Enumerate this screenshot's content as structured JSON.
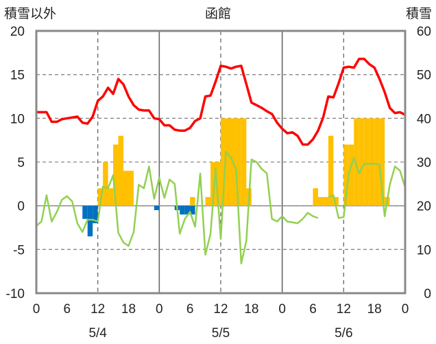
{
  "header": {
    "left_axis_title": "積雪以外",
    "center_title": "函館",
    "right_axis_title": "積雪"
  },
  "chart_data": {
    "type": "bar+line",
    "title": "函館",
    "y_left": {
      "label": "積雪以外",
      "ylim": [
        -10,
        20
      ],
      "ticks": [
        -10,
        -5,
        0,
        5,
        10,
        15,
        20
      ]
    },
    "y_right": {
      "label": "積雪",
      "ylim": [
        0,
        60
      ],
      "ticks": [
        0,
        10,
        20,
        30,
        40,
        50,
        60
      ]
    },
    "x": {
      "range_hours": [
        0,
        72
      ],
      "tick_hours": [
        0,
        6,
        12,
        18,
        24,
        30,
        36,
        42,
        48,
        54,
        60,
        66,
        72
      ],
      "tick_labels": [
        "0",
        "6",
        "12",
        "18",
        "0",
        "6",
        "12",
        "18",
        "0",
        "6",
        "12",
        "18",
        "0"
      ],
      "day_labels": [
        {
          "hour": 12,
          "text": "5/4"
        },
        {
          "hour": 36,
          "text": "5/5"
        },
        {
          "hour": 60,
          "text": "5/6"
        }
      ],
      "day_dividers": [
        24,
        48
      ],
      "dashed_gridlines": [
        12,
        36,
        60
      ]
    },
    "grid": {
      "horizontal_dashed": [
        -5,
        0,
        5,
        10,
        15
      ]
    },
    "series": [
      {
        "type": "bar",
        "color": "#FFC000",
        "axis": "left",
        "points": [
          [
            12,
            2
          ],
          [
            13,
            5
          ],
          [
            14,
            2
          ],
          [
            15,
            7
          ],
          [
            16,
            8
          ],
          [
            17,
            4
          ],
          [
            18,
            4
          ],
          [
            30,
            1
          ],
          [
            33,
            1
          ],
          [
            34,
            5
          ],
          [
            35,
            5
          ],
          [
            36,
            10
          ],
          [
            37,
            10
          ],
          [
            38,
            10
          ],
          [
            39,
            10
          ],
          [
            40,
            10
          ],
          [
            41,
            2
          ],
          [
            54,
            2
          ],
          [
            55,
            1
          ],
          [
            56,
            1
          ],
          [
            57,
            8
          ],
          [
            58,
            1
          ],
          [
            60,
            7
          ],
          [
            61,
            7
          ],
          [
            62,
            10
          ],
          [
            63,
            10
          ],
          [
            64,
            10
          ],
          [
            65,
            10
          ],
          [
            66,
            10
          ],
          [
            67,
            10
          ],
          [
            68,
            1
          ]
        ]
      },
      {
        "type": "bar",
        "color": "#0070C0",
        "axis": "left",
        "points": [
          [
            9,
            -1.5
          ],
          [
            10,
            -3.5
          ],
          [
            11,
            -2
          ],
          [
            23,
            -0.5
          ],
          [
            27,
            -0.5
          ],
          [
            28,
            -1
          ],
          [
            29,
            -1
          ],
          [
            30,
            -1
          ]
        ]
      },
      {
        "type": "line",
        "color": "#FF0000",
        "axis": "left",
        "points": [
          [
            0,
            10.7
          ],
          [
            1,
            10.7
          ],
          [
            2,
            10.7
          ],
          [
            3,
            9.6
          ],
          [
            4,
            9.6
          ],
          [
            5,
            9.9
          ],
          [
            6,
            10.0
          ],
          [
            7,
            10.1
          ],
          [
            8,
            10.2
          ],
          [
            9,
            9.5
          ],
          [
            10,
            9.4
          ],
          [
            11,
            10.2
          ],
          [
            12,
            12.0
          ],
          [
            13,
            12.5
          ],
          [
            14,
            13.5
          ],
          [
            15,
            12.8
          ],
          [
            16,
            14.5
          ],
          [
            17,
            13.9
          ],
          [
            18,
            12.5
          ],
          [
            19,
            11.5
          ],
          [
            20,
            11.0
          ],
          [
            21,
            10.9
          ],
          [
            22,
            10.9
          ],
          [
            23,
            10.0
          ],
          [
            24,
            9.9
          ],
          [
            25,
            9.2
          ],
          [
            26,
            9.2
          ],
          [
            27,
            8.7
          ],
          [
            28,
            8.6
          ],
          [
            29,
            8.6
          ],
          [
            30,
            8.9
          ],
          [
            31,
            9.7
          ],
          [
            32,
            10.0
          ],
          [
            33,
            12.5
          ],
          [
            34,
            12.6
          ],
          [
            35,
            14.2
          ],
          [
            36,
            16.0
          ],
          [
            37,
            15.9
          ],
          [
            38,
            15.7
          ],
          [
            39,
            15.9
          ],
          [
            40,
            16.0
          ],
          [
            41,
            13.9
          ],
          [
            42,
            11.8
          ],
          [
            43,
            11.5
          ],
          [
            44,
            11.2
          ],
          [
            45,
            10.8
          ],
          [
            46,
            10.5
          ],
          [
            47,
            9.5
          ],
          [
            48,
            8.8
          ],
          [
            49,
            8.3
          ],
          [
            50,
            8.4
          ],
          [
            51,
            8.0
          ],
          [
            52,
            7.0
          ],
          [
            53,
            7.0
          ],
          [
            54,
            7.6
          ],
          [
            55,
            8.6
          ],
          [
            56,
            10.1
          ],
          [
            57,
            12.5
          ],
          [
            58,
            12.4
          ],
          [
            59,
            14.0
          ],
          [
            60,
            15.8
          ],
          [
            61,
            15.9
          ],
          [
            62,
            15.8
          ],
          [
            63,
            16.8
          ],
          [
            64,
            16.8
          ],
          [
            65,
            16.2
          ],
          [
            66,
            15.8
          ],
          [
            67,
            14.5
          ],
          [
            68,
            13.0
          ],
          [
            69,
            11.2
          ],
          [
            70,
            10.6
          ],
          [
            71,
            10.7
          ],
          [
            72,
            10.4
          ]
        ]
      },
      {
        "type": "line",
        "color": "#92D050",
        "axis": "left",
        "points": [
          [
            0,
            -2.3
          ],
          [
            1,
            -1.8
          ],
          [
            2,
            1.2
          ],
          [
            3,
            -1.8
          ],
          [
            4,
            -0.7
          ],
          [
            5,
            0.7
          ],
          [
            6,
            1.1
          ],
          [
            7,
            0.5
          ],
          [
            8,
            -2.0
          ],
          [
            9,
            -3.0
          ],
          [
            10,
            -1.6
          ],
          [
            11,
            -1.6
          ],
          [
            12,
            -1.8
          ],
          [
            13,
            2.2
          ],
          [
            14,
            2.0
          ],
          [
            15,
            3.5
          ],
          [
            16,
            -3.1
          ],
          [
            17,
            -4.2
          ],
          [
            18,
            -4.6
          ],
          [
            19,
            -3.0
          ],
          [
            20,
            2.4
          ],
          [
            21,
            2.0
          ],
          [
            22,
            4.5
          ],
          [
            23,
            0.8
          ],
          [
            24,
            3.2
          ],
          [
            25,
            0.9
          ],
          [
            26,
            3.0
          ],
          [
            27,
            2.5
          ],
          [
            28,
            -3.2
          ],
          [
            29,
            -1.5
          ],
          [
            30,
            -0.7
          ],
          [
            31,
            -2.4
          ],
          [
            32,
            3.7
          ],
          [
            33,
            -5.6
          ],
          [
            34,
            -3.2
          ],
          [
            35,
            4.3
          ],
          [
            36,
            -3.8
          ],
          [
            37,
            6.2
          ],
          [
            38,
            5.5
          ],
          [
            39,
            4.2
          ],
          [
            40,
            -6.6
          ],
          [
            41,
            -4.0
          ],
          [
            42,
            5.3
          ],
          [
            43,
            5.0
          ],
          [
            44,
            4.2
          ],
          [
            45,
            3.7
          ],
          [
            46,
            -1.5
          ],
          [
            47,
            -1.8
          ],
          [
            48,
            -1.2
          ],
          [
            49,
            -1.8
          ],
          [
            50,
            -1.9
          ],
          [
            51,
            -2.0
          ],
          [
            52,
            -1.5
          ],
          [
            53,
            -0.8
          ],
          [
            54,
            -1.2
          ],
          [
            55,
            -1.4
          ],
          [
            57,
            1.0
          ],
          [
            58,
            1.2
          ],
          [
            59,
            -1.4
          ],
          [
            60,
            -1.3
          ],
          [
            61,
            3.7
          ],
          [
            62,
            5.5
          ],
          [
            63,
            3.7
          ],
          [
            64,
            4.8
          ],
          [
            65,
            4.8
          ],
          [
            66,
            4.8
          ],
          [
            67,
            4.7
          ],
          [
            68,
            -1.2
          ],
          [
            69,
            2.4
          ],
          [
            70,
            4.5
          ],
          [
            71,
            4.0
          ],
          [
            72,
            2.1
          ]
        ]
      },
      {
        "type": "line",
        "color": "#7030A0",
        "axis": "right",
        "points": [
          [
            0,
            0
          ],
          [
            72,
            0
          ]
        ]
      }
    ]
  }
}
